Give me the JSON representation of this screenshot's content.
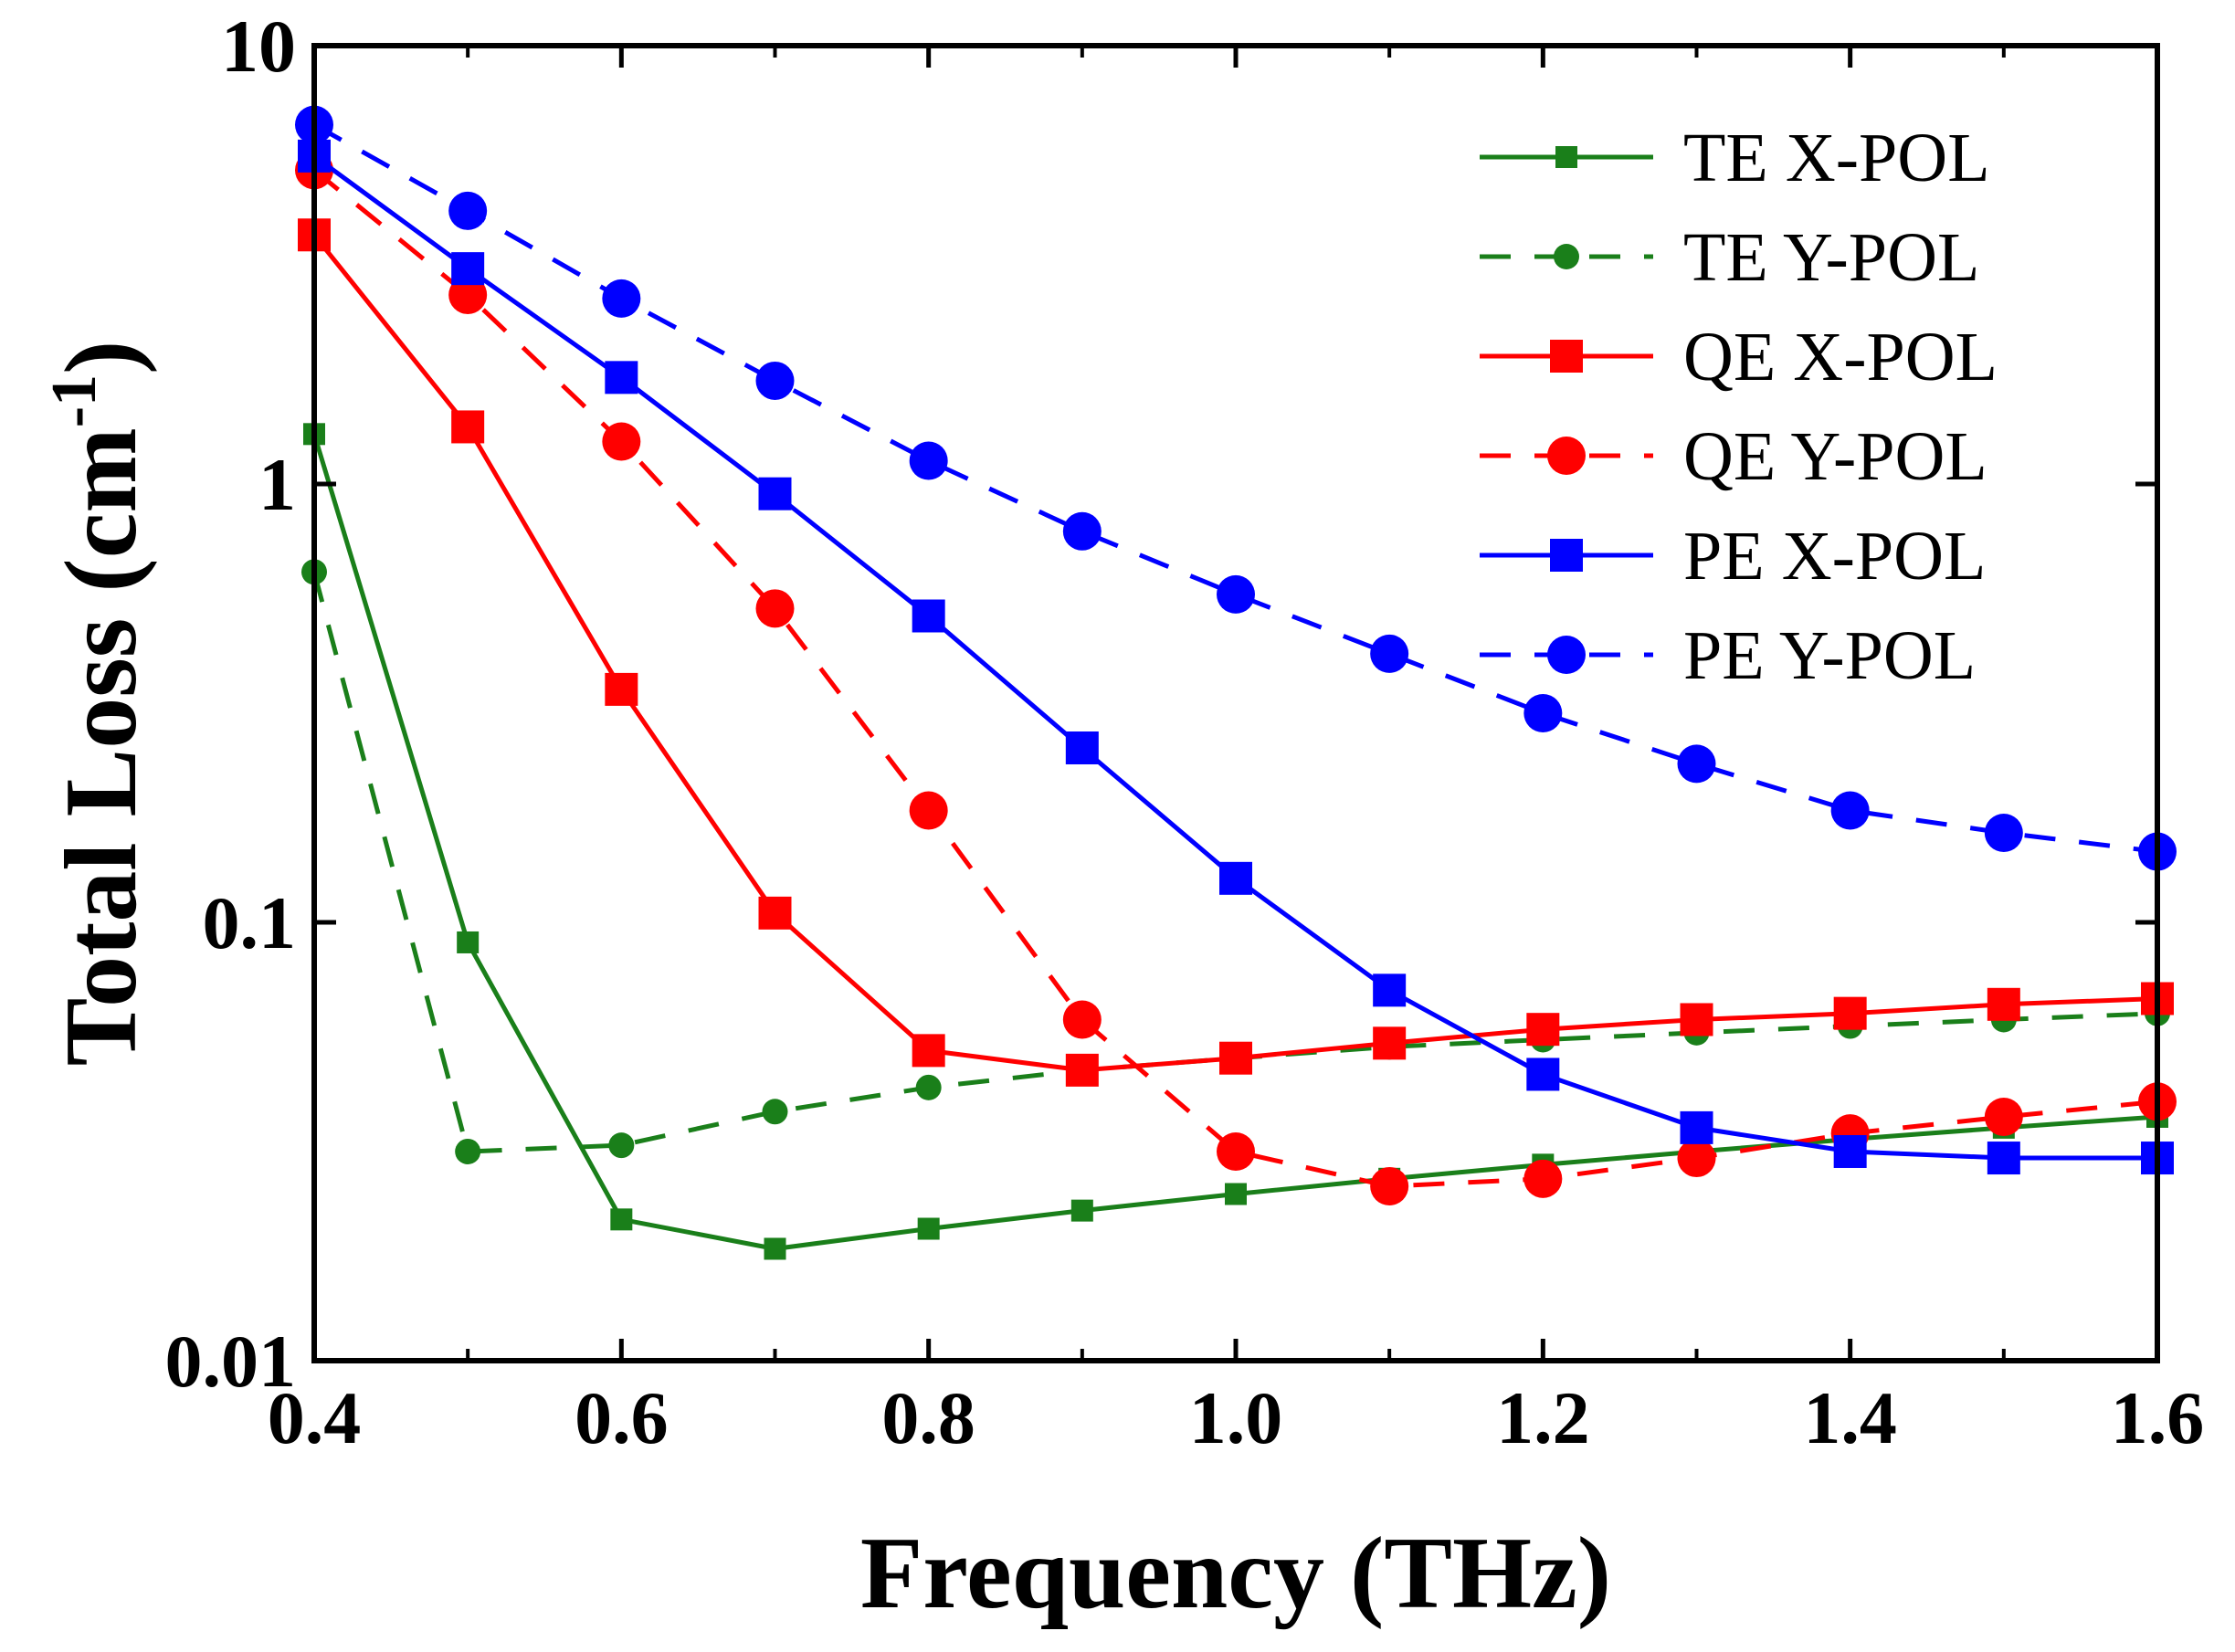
{
  "chart_data": {
    "type": "line",
    "title": "",
    "xlabel": "Frequency (THz)",
    "ylabel_main": "Total Loss (cm",
    "ylabel_sup": "-1",
    "ylabel_close": ")",
    "xlim": [
      0.4,
      1.6
    ],
    "ylim": [
      0.01,
      10
    ],
    "yscale": "log",
    "grid": false,
    "legend_position": "top-right",
    "x_ticks": [
      {
        "value": 0.4,
        "label": "0.4"
      },
      {
        "value": 0.6,
        "label": "0.6"
      },
      {
        "value": 0.8,
        "label": "0.8"
      },
      {
        "value": 1.0,
        "label": "1.0"
      },
      {
        "value": 1.2,
        "label": "1.2"
      },
      {
        "value": 1.4,
        "label": "1.4"
      },
      {
        "value": 1.6,
        "label": "1.6"
      }
    ],
    "y_ticks": [
      {
        "value": 0.01,
        "label": "0.01"
      },
      {
        "value": 0.1,
        "label": "0.1"
      },
      {
        "value": 1,
        "label": "1"
      },
      {
        "value": 10,
        "label": "10"
      }
    ],
    "x": [
      0.4,
      0.5,
      0.6,
      0.7,
      0.8,
      0.9,
      1.0,
      1.1,
      1.2,
      1.3,
      1.4,
      1.5,
      1.6
    ],
    "series": [
      {
        "name": "TE X-POL",
        "color": "#1a7f1a",
        "dash": "solid",
        "marker": "square",
        "marker_size": "small",
        "values": [
          1.3,
          0.09,
          0.021,
          0.018,
          0.02,
          0.022,
          0.024,
          0.026,
          0.028,
          0.03,
          0.032,
          0.034,
          0.036
        ]
      },
      {
        "name": "TE Y-POL",
        "color": "#1a7f1a",
        "dash": "dashed",
        "marker": "circle",
        "marker_size": "small",
        "values": [
          0.63,
          0.03,
          0.031,
          0.037,
          0.042,
          0.046,
          0.049,
          0.052,
          0.054,
          0.056,
          0.058,
          0.06,
          0.062
        ]
      },
      {
        "name": "QE X-POL",
        "color": "#ff0000",
        "dash": "solid",
        "marker": "square",
        "marker_size": "large",
        "values": [
          3.7,
          1.35,
          0.34,
          0.105,
          0.051,
          0.046,
          0.049,
          0.053,
          0.057,
          0.06,
          0.062,
          0.065,
          0.067
        ]
      },
      {
        "name": "QE Y-POL",
        "color": "#ff0000",
        "dash": "dashed",
        "marker": "circle",
        "marker_size": "large",
        "values": [
          5.2,
          2.7,
          1.25,
          0.52,
          0.18,
          0.06,
          0.03,
          0.025,
          0.026,
          0.029,
          0.033,
          0.036,
          0.039
        ]
      },
      {
        "name": "PE X-POL",
        "color": "#0000ff",
        "dash": "solid",
        "marker": "square",
        "marker_size": "large",
        "values": [
          5.6,
          3.1,
          1.75,
          0.95,
          0.5,
          0.25,
          0.126,
          0.07,
          0.045,
          0.034,
          0.03,
          0.029,
          0.029
        ]
      },
      {
        "name": "PE Y-POL",
        "color": "#0000ff",
        "dash": "dashed",
        "marker": "circle",
        "marker_size": "large",
        "values": [
          6.6,
          4.2,
          2.65,
          1.72,
          1.13,
          0.78,
          0.56,
          0.41,
          0.3,
          0.23,
          0.18,
          0.16,
          0.145
        ]
      }
    ]
  }
}
